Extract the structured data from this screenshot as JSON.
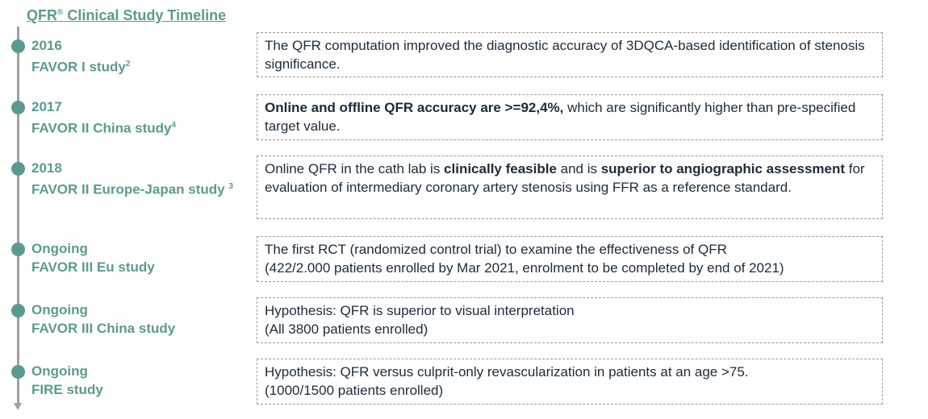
{
  "title": {
    "text": "QFR",
    "sup": "®",
    "rest": " Clinical Study Timeline"
  },
  "colors": {
    "accent": "#5b9a90",
    "axis": "#a0a0a0",
    "text": "#1c2b3a"
  },
  "studies": [
    {
      "year": "2016",
      "name": "FAVOR I study",
      "ref": "2",
      "segments": [
        {
          "text": "The QFR computation improved the diagnostic accuracy of 3DQCA-based identification of stenosis significance.",
          "bold": false
        }
      ]
    },
    {
      "year": "2017",
      "name": "FAVOR II China study",
      "ref": "4",
      "segments": [
        {
          "text": "Online and offline QFR accuracy are >=92,4%,",
          "bold": true
        },
        {
          "text": " which are significantly higher than pre-specified target value.",
          "bold": false
        }
      ]
    },
    {
      "year": "2018",
      "name": "FAVOR II Europe-Japan study ",
      "ref": "3",
      "segments": [
        {
          "text": "Online QFR in the cath lab is ",
          "bold": false
        },
        {
          "text": "clinically feasible",
          "bold": true
        },
        {
          "text": " and is ",
          "bold": false
        },
        {
          "text": "superior to angiographic assessment",
          "bold": true
        },
        {
          "text": " for evaluation of intermediary coronary artery stenosis using FFR as a reference standard.",
          "bold": false
        }
      ]
    },
    {
      "year": "Ongoing",
      "name": "FAVOR III Eu study",
      "ref": "",
      "segments": [
        {
          "text": "The first RCT (randomized control trial) to examine the effectiveness of QFR",
          "bold": false
        },
        {
          "text": "(422/2.000 patients enrolled by Mar 2021, enrolment to be completed by end of 2021)",
          "bold": false
        }
      ]
    },
    {
      "year": "Ongoing",
      "name": "FAVOR III China study",
      "ref": "",
      "segments": [
        {
          "text": "Hypothesis: QFR is superior to visual interpretation",
          "bold": false
        },
        {
          "text": "(All 3800 patients enrolled)",
          "bold": false
        }
      ]
    },
    {
      "year": "Ongoing",
      "name": "FIRE study",
      "ref": "",
      "segments": [
        {
          "text": "Hypothesis: QFR versus culprit-only revascularization in patients at an age >75.",
          "bold": false
        },
        {
          "text": "(1000/1500 patients enrolled)",
          "bold": false
        }
      ]
    }
  ]
}
